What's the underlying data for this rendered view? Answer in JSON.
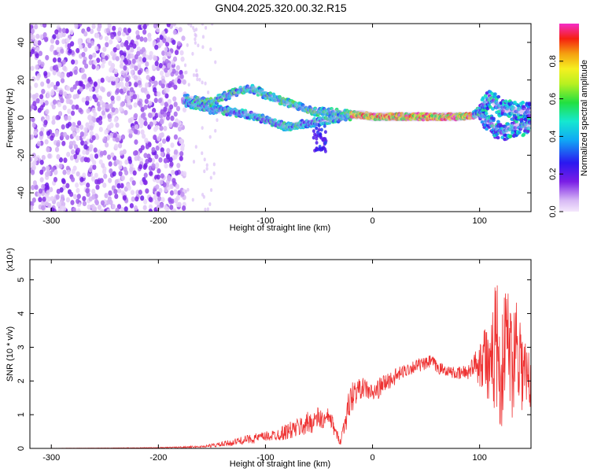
{
  "title": "GN04.2025.320.00.32.R15",
  "chart_data": [
    {
      "type": "heatmap",
      "xlabel": "Height of straight line (km)",
      "ylabel": "Frequency (Hz)",
      "xlim": [
        -320,
        148
      ],
      "ylim": [
        -50,
        50
      ],
      "xticks": [
        -300,
        -200,
        -100,
        0,
        100
      ],
      "yticks": [
        -40,
        -20,
        0,
        20,
        40
      ],
      "grid": false,
      "colorbar": {
        "label": "Normalized spectral amplitude",
        "range": [
          0,
          1
        ],
        "ticks": [
          "0.0",
          "0.2",
          "0.4",
          "0.6",
          "0.8"
        ],
        "colormap": "rainbow (lavender-purple-blue-cyan-green-yellow-orange-red-magenta)",
        "placement": "right"
      },
      "ridge": {
        "description": "dominant frequency trace vs height",
        "x": [
          -175,
          -160,
          -150,
          -140,
          -130,
          -120,
          -110,
          -100,
          -90,
          -80,
          -70,
          -60,
          -50,
          -40,
          -30,
          -20,
          -10,
          0,
          20,
          40,
          60,
          80,
          95,
          100,
          110,
          120,
          130,
          148
        ],
        "y_upper": [
          10,
          9,
          8,
          11,
          13,
          15,
          15,
          12,
          10,
          8,
          6,
          4,
          3,
          3,
          2,
          2,
          2,
          1,
          1,
          1,
          1,
          1,
          1,
          5,
          10,
          5,
          4,
          3
        ],
        "y_lower": [
          8,
          6,
          4,
          4,
          3,
          2,
          1,
          -1,
          -3,
          -5,
          -4,
          -3,
          -2,
          -1,
          0,
          1,
          1,
          0,
          0,
          0,
          0,
          0,
          1,
          2,
          -3,
          -8,
          -5,
          -4
        ],
        "peak_amplitude_region": [
          -20,
          95
        ]
      },
      "noise_region": [
        -320,
        -175
      ]
    },
    {
      "type": "line",
      "xlabel": "Height of straight line (km)",
      "ylabel": "SNR (10 * v/v)",
      "y_multiplier": "(x10⁴)",
      "xlim": [
        -320,
        148
      ],
      "ylim": [
        0,
        5.6
      ],
      "xticks": [
        -300,
        -200,
        -100,
        0,
        100
      ],
      "yticks": [
        0,
        1,
        2,
        3,
        4,
        5
      ],
      "grid": false,
      "series": [
        {
          "color": "#ee3333",
          "x": [
            -320,
            -250,
            -200,
            -160,
            -140,
            -130,
            -120,
            -110,
            -100,
            -90,
            -80,
            -70,
            -60,
            -50,
            -45,
            -40,
            -35,
            -30,
            -25,
            -20,
            -15,
            -10,
            -5,
            0,
            10,
            20,
            30,
            40,
            50,
            55,
            60,
            70,
            80,
            90,
            95,
            100,
            105,
            110,
            115,
            120,
            125,
            130,
            135,
            140,
            148
          ],
          "values": [
            0.0,
            0.01,
            0.02,
            0.05,
            0.12,
            0.18,
            0.25,
            0.3,
            0.35,
            0.4,
            0.5,
            0.6,
            0.75,
            0.9,
            0.8,
            0.95,
            0.5,
            0.2,
            0.9,
            1.5,
            1.7,
            1.8,
            1.75,
            1.6,
            1.9,
            2.1,
            2.3,
            2.45,
            2.5,
            2.6,
            2.4,
            2.3,
            2.2,
            2.3,
            2.5,
            2.6,
            2.9,
            1.8,
            3.5,
            2.0,
            3.6,
            2.5,
            3.4,
            2.3,
            1.8
          ],
          "band_half_width": [
            0.0,
            0.005,
            0.01,
            0.03,
            0.08,
            0.1,
            0.12,
            0.15,
            0.15,
            0.18,
            0.25,
            0.3,
            0.35,
            0.35,
            0.3,
            0.3,
            0.2,
            0.1,
            0.4,
            0.5,
            0.35,
            0.3,
            0.3,
            0.3,
            0.3,
            0.25,
            0.2,
            0.2,
            0.2,
            0.2,
            0.2,
            0.15,
            0.2,
            0.25,
            0.3,
            0.8,
            1.1,
            1.4,
            2.1,
            1.7,
            1.5,
            1.7,
            1.6,
            1.4,
            1.2
          ]
        }
      ]
    }
  ]
}
